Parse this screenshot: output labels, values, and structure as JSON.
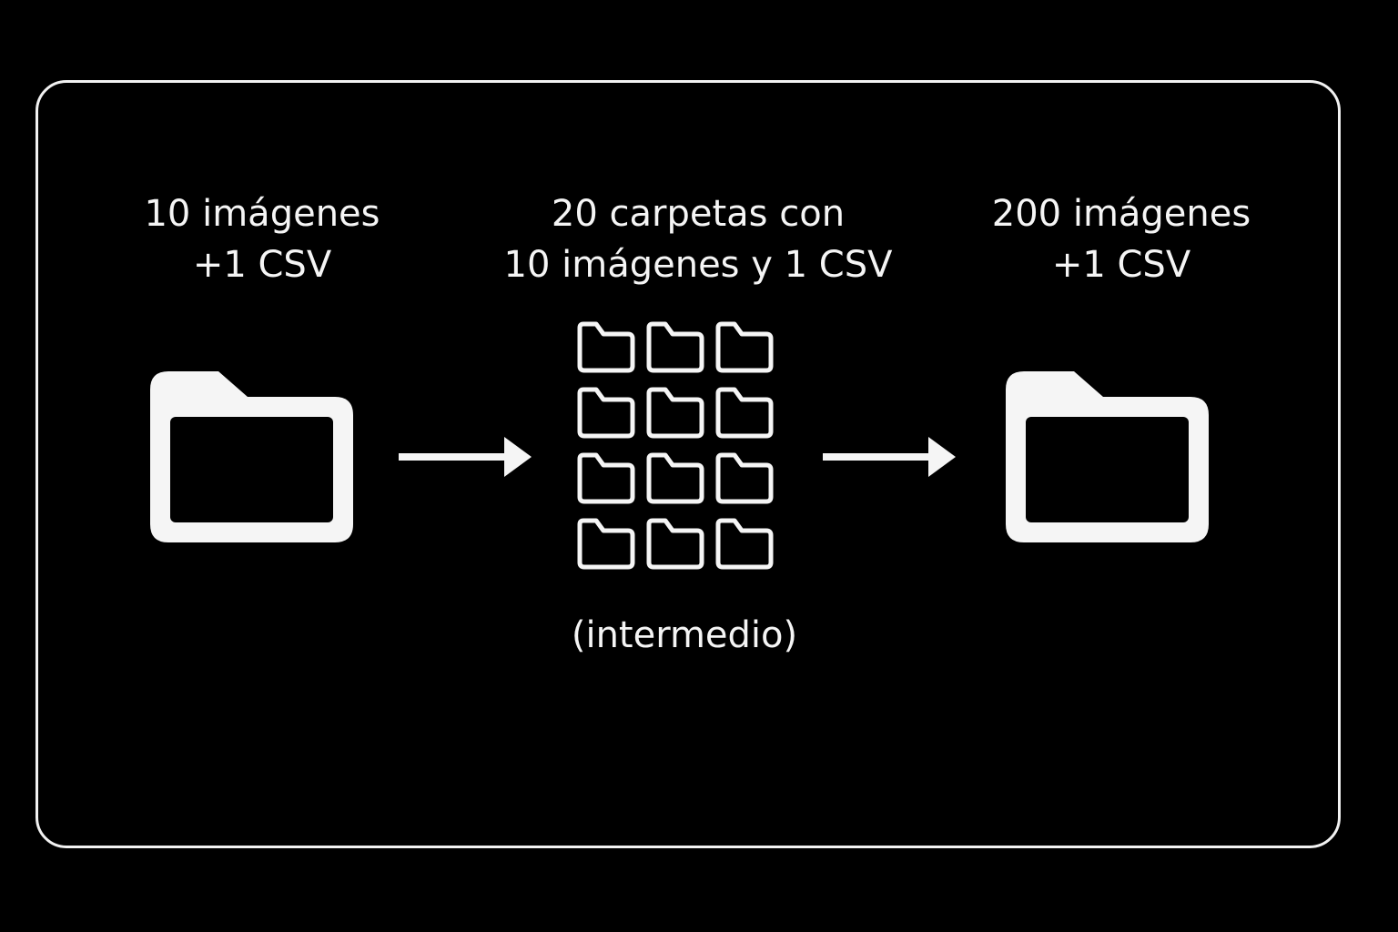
{
  "diagram": {
    "source": {
      "line1": "10 imágenes",
      "line2": "+1 CSV",
      "icon": "folder-icon"
    },
    "intermediate": {
      "line1": "20 carpetas con",
      "line2": "10 imágenes y 1 CSV",
      "caption": "(intermedio)",
      "icon": "folder-grid-icon",
      "grid_rows": 4,
      "grid_cols": 3
    },
    "result": {
      "line1": "200 imágenes",
      "line2": "+1 CSV",
      "icon": "folder-icon"
    },
    "arrows": [
      "arrow-right-icon",
      "arrow-right-icon"
    ]
  },
  "colors": {
    "background": "#000000",
    "foreground": "#f5f5f5"
  }
}
